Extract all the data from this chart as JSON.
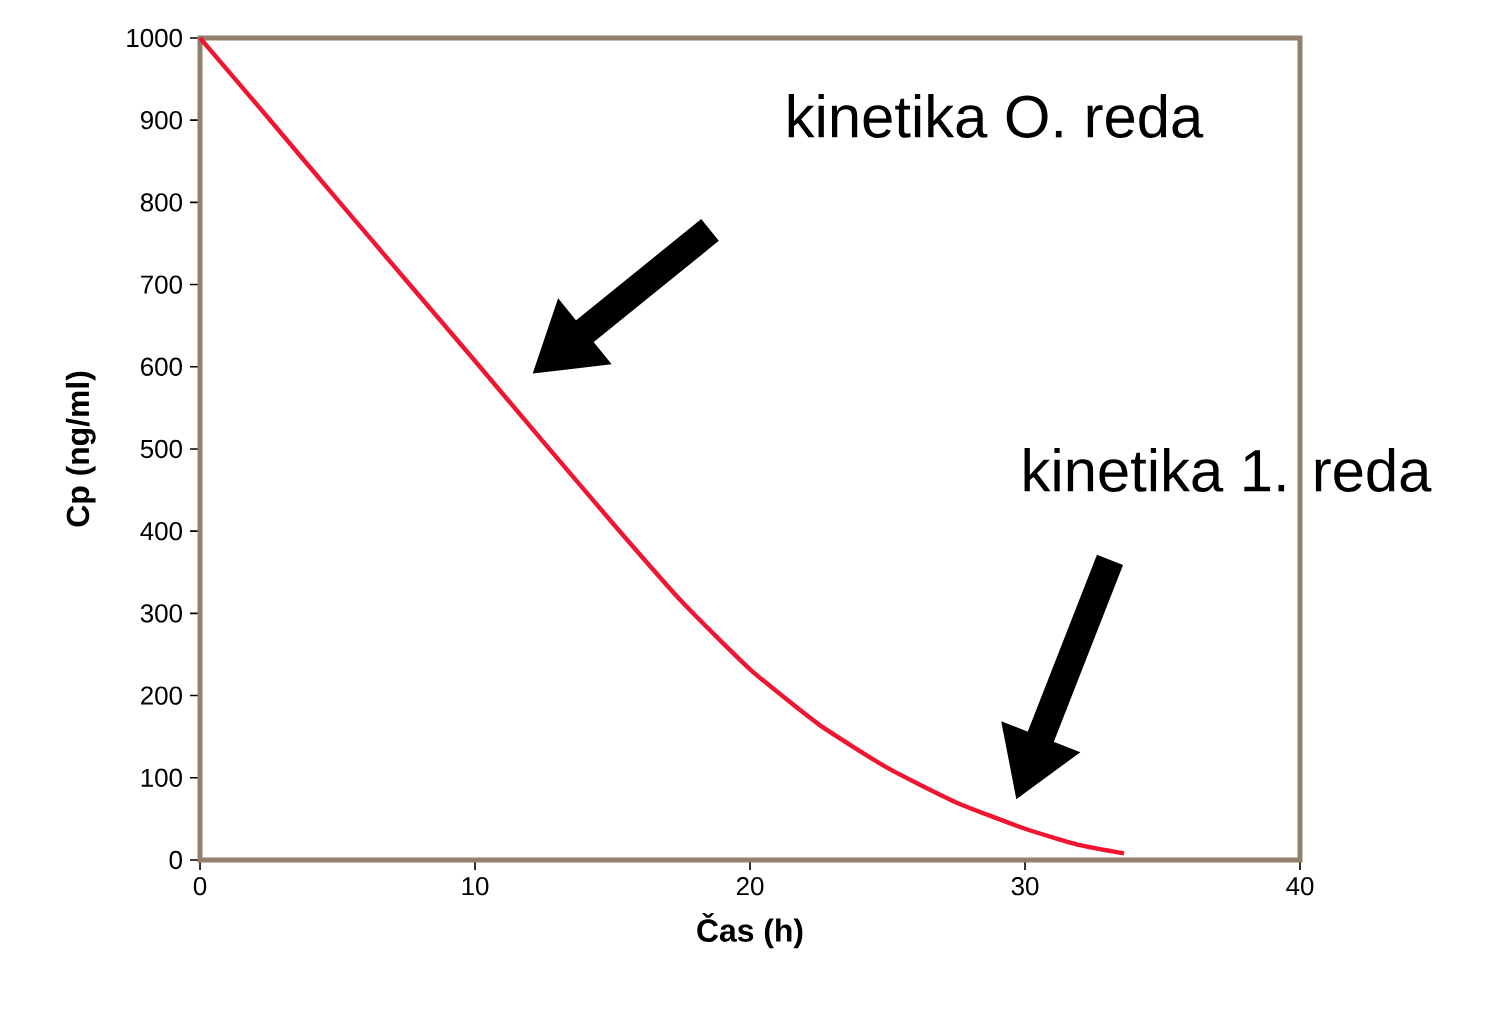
{
  "chart_data": {
    "type": "line",
    "xlabel": "Čas (h)",
    "ylabel": "Cp (ng/ml)",
    "x": [
      0,
      2.5,
      5,
      7.5,
      10,
      12.5,
      15,
      17.5,
      20,
      22.5,
      25,
      27.5,
      30,
      32,
      33.6
    ],
    "series": [
      {
        "color": "#f01530",
        "values": [
          1000,
          902,
          803,
          705,
          607,
          508,
          410,
          315,
          232,
          165,
          112,
          70,
          38,
          18,
          8
        ]
      }
    ],
    "xlim": [
      0,
      40
    ],
    "ylim": [
      0,
      1000
    ],
    "xticks": [
      0,
      10,
      20,
      30,
      40
    ],
    "yticks": [
      0,
      100,
      200,
      300,
      400,
      500,
      600,
      700,
      800,
      900,
      1000
    ],
    "grid": false,
    "marker": "none",
    "line_style": "solid",
    "annotations": [
      "kinetika O. reda",
      "kinetika 1. reda"
    ]
  }
}
